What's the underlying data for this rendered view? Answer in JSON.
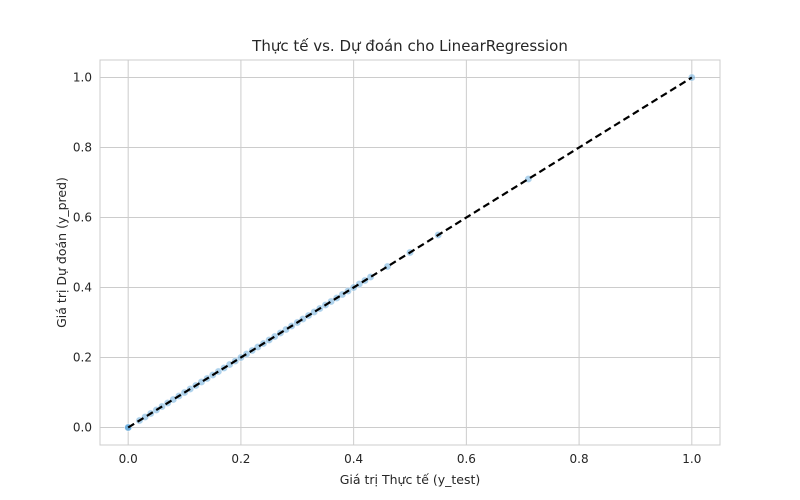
{
  "chart_data": {
    "type": "scatter",
    "title": "Thực tế vs. Dự đoán cho LinearRegression",
    "xlabel": "Giá trị Thực tế (y_test)",
    "ylabel": "Giá trị Dự đoán (y_pred)",
    "xlim": [
      -0.05,
      1.05
    ],
    "ylim": [
      -0.05,
      1.05
    ],
    "xticks": [
      0.0,
      0.2,
      0.4,
      0.6,
      0.8,
      1.0
    ],
    "yticks": [
      0.0,
      0.2,
      0.4,
      0.6,
      0.8,
      1.0
    ],
    "xtick_labels": [
      "0.0",
      "0.2",
      "0.4",
      "0.6",
      "0.8",
      "1.0"
    ],
    "ytick_labels": [
      "0.0",
      "0.2",
      "0.4",
      "0.6",
      "0.8",
      "1.0"
    ],
    "grid": true,
    "point_color": "#5da5da",
    "point_opacity": 0.5,
    "reference_line": {
      "style": "dashed",
      "color": "#000000",
      "from": [
        0.0,
        0.0
      ],
      "to": [
        1.0,
        1.0
      ]
    },
    "points": [
      [
        0.0,
        0.0
      ],
      [
        0.0,
        0.0
      ],
      [
        0.0,
        0.0
      ],
      [
        0.02,
        0.02
      ],
      [
        0.03,
        0.03
      ],
      [
        0.04,
        0.04
      ],
      [
        0.05,
        0.05
      ],
      [
        0.06,
        0.06
      ],
      [
        0.07,
        0.07
      ],
      [
        0.08,
        0.08
      ],
      [
        0.09,
        0.09
      ],
      [
        0.1,
        0.1
      ],
      [
        0.11,
        0.11
      ],
      [
        0.12,
        0.12
      ],
      [
        0.13,
        0.13
      ],
      [
        0.14,
        0.14
      ],
      [
        0.15,
        0.15
      ],
      [
        0.16,
        0.16
      ],
      [
        0.17,
        0.17
      ],
      [
        0.18,
        0.18
      ],
      [
        0.19,
        0.19
      ],
      [
        0.2,
        0.2
      ],
      [
        0.21,
        0.21
      ],
      [
        0.22,
        0.22
      ],
      [
        0.23,
        0.23
      ],
      [
        0.24,
        0.24
      ],
      [
        0.25,
        0.25
      ],
      [
        0.26,
        0.26
      ],
      [
        0.27,
        0.27
      ],
      [
        0.28,
        0.28
      ],
      [
        0.29,
        0.29
      ],
      [
        0.3,
        0.3
      ],
      [
        0.31,
        0.31
      ],
      [
        0.32,
        0.32
      ],
      [
        0.33,
        0.33
      ],
      [
        0.34,
        0.34
      ],
      [
        0.35,
        0.35
      ],
      [
        0.36,
        0.36
      ],
      [
        0.37,
        0.37
      ],
      [
        0.38,
        0.38
      ],
      [
        0.39,
        0.39
      ],
      [
        0.4,
        0.4
      ],
      [
        0.41,
        0.41
      ],
      [
        0.42,
        0.42
      ],
      [
        0.43,
        0.43
      ],
      [
        0.46,
        0.46
      ],
      [
        0.5,
        0.5
      ],
      [
        0.55,
        0.55
      ],
      [
        0.71,
        0.71
      ],
      [
        1.0,
        1.0
      ]
    ]
  }
}
